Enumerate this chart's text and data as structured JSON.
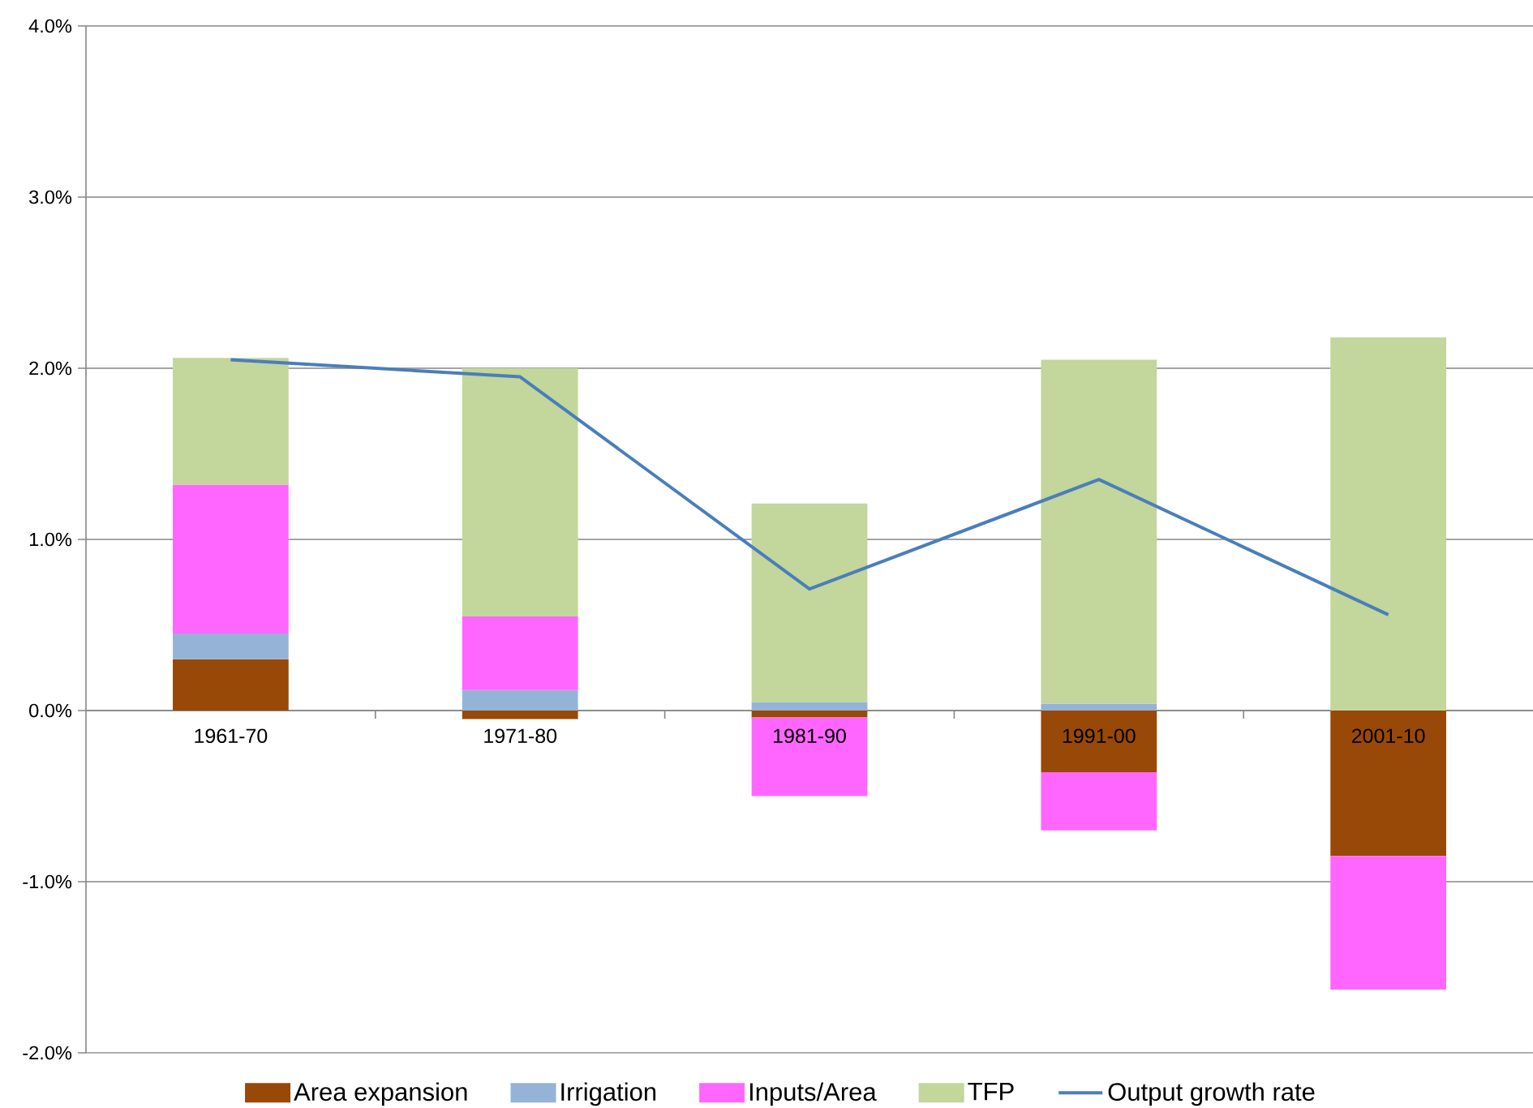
{
  "chart_data": {
    "type": "bar",
    "stacked": true,
    "categories": [
      "1961-70",
      "1971-80",
      "1981-90",
      "1991-00",
      "2001-10"
    ],
    "series": [
      {
        "name": "Area expansion",
        "color": "#984807",
        "values": [
          0.3,
          -0.05,
          -0.04,
          -0.36,
          -0.85
        ]
      },
      {
        "name": "Irrigation",
        "color": "#95b3d7",
        "values": [
          0.15,
          0.12,
          0.05,
          0.04,
          0
        ]
      },
      {
        "name": "Inputs/Area",
        "color": "#ff66ff",
        "values": [
          0.87,
          0.43,
          -0.46,
          -0.34,
          -0.78
        ]
      },
      {
        "name": "TFP",
        "color": "#c3d69b",
        "values": [
          0.74,
          1.45,
          1.16,
          2.01,
          2.18
        ]
      },
      {
        "name": "Output growth rate",
        "type": "line",
        "color": "#4a7ebb",
        "marker": "none",
        "line_style": "solid",
        "values": [
          2.05,
          1.95,
          0.71,
          1.35,
          0.56
        ]
      }
    ],
    "ylim": [
      -2,
      4
    ],
    "yticks": [
      {
        "value": -2,
        "label": "-2.0%"
      },
      {
        "value": -1,
        "label": "-1.0%"
      },
      {
        "value": 0,
        "label": "0.0%"
      },
      {
        "value": 1,
        "label": "1.0%"
      },
      {
        "value": 2,
        "label": "2.0%"
      },
      {
        "value": 3,
        "label": "3.0%"
      },
      {
        "value": 4,
        "label": "4.0%"
      }
    ],
    "grid": "y",
    "legend": "bottom"
  }
}
